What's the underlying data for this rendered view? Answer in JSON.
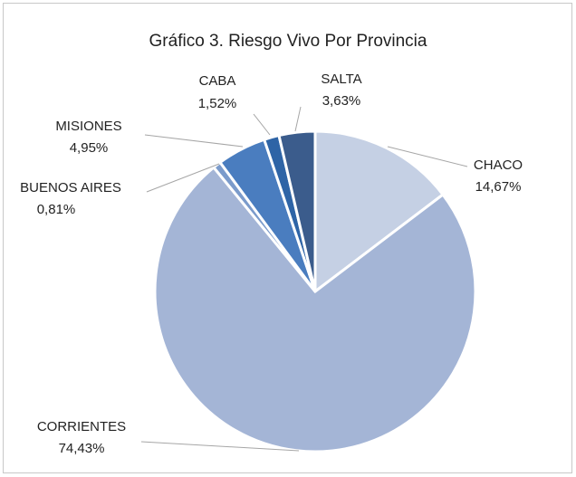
{
  "chart_data": {
    "type": "pie",
    "title": "Gráfico 3.  Riesgo Vivo Por Provincia",
    "categories": [
      "CHACO",
      "CORRIENTES",
      "BUENOS AIRES",
      "MISIONES",
      "CABA",
      "SALTA"
    ],
    "values": [
      14.67,
      74.43,
      0.81,
      4.95,
      1.52,
      3.63
    ],
    "value_labels": [
      "14,67%",
      "74,43%",
      "0,81%",
      "4,95%",
      "1,52%",
      "3,63%"
    ],
    "colors": [
      "#c5d0e4",
      "#a4b5d6",
      "#7b9bcb",
      "#4a7dbf",
      "#2e64a6",
      "#3b5c8c"
    ]
  }
}
